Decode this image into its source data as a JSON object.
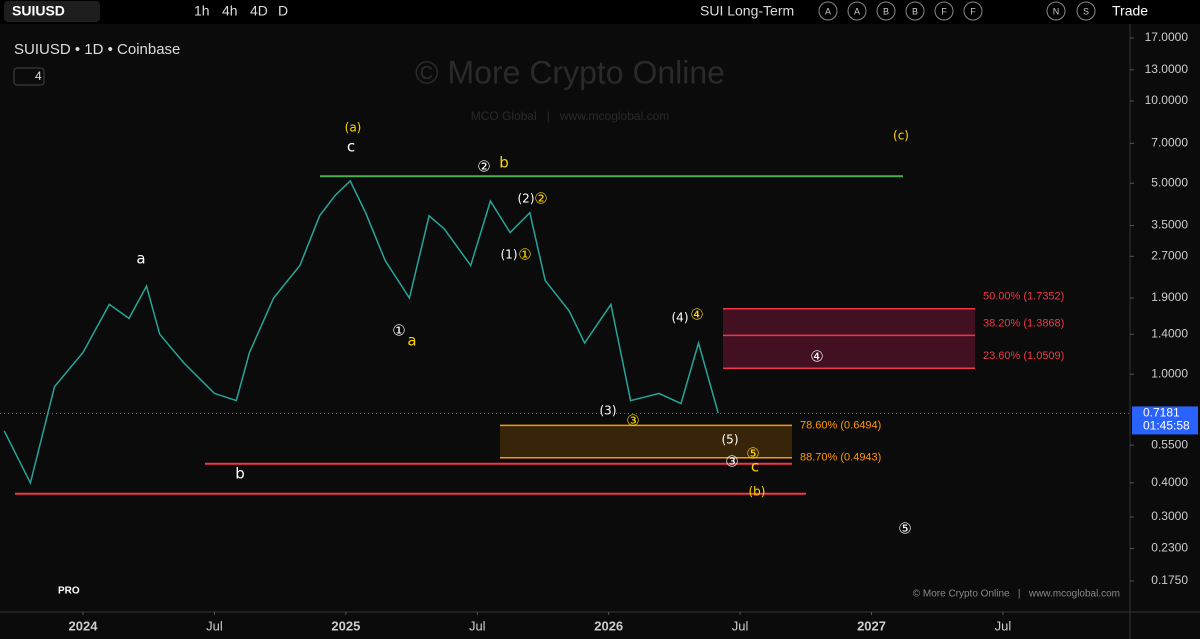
{
  "toolbar": {
    "symbol": "SUIUSD",
    "intervals": [
      "1h",
      "4h",
      "4D",
      "D"
    ],
    "layout_name": "SUI Long-Term",
    "alerts": [
      "A",
      "A",
      "B",
      "B",
      "F",
      "F"
    ],
    "extra": [
      "N",
      "S"
    ],
    "trade": "Trade"
  },
  "legend": {
    "title": "SUIUSD • 1D • Coinbase",
    "indicators": "4"
  },
  "watermark": {
    "title": "© More Crypto Online",
    "subtitle": "MCO Global   |   www.mcoglobal.com"
  },
  "footer": {
    "credit": "© More Crypto Online   |   www.mcoglobal.com",
    "logo": "PRO"
  },
  "chart_data": {
    "type": "line",
    "log_scale": true,
    "color": "#26a69a",
    "x": [
      -3.6,
      -2.4,
      -1.3,
      0,
      1.2,
      2.1,
      2.9,
      3.5,
      4.6,
      6,
      7,
      7.6,
      8.7,
      9.9,
      10.8,
      11.5,
      12.2,
      12.9,
      13.8,
      14.9,
      15.8,
      16.5,
      17.7,
      18.6,
      19.5,
      20.4,
      21.1,
      22.2,
      22.9,
      24.1,
      25,
      26.3,
      27.3,
      28.1,
      29
    ],
    "values": [
      0.62,
      0.4,
      0.9,
      1.2,
      1.8,
      1.6,
      2.1,
      1.4,
      1.1,
      0.85,
      0.8,
      1.2,
      1.9,
      2.5,
      3.8,
      4.5,
      5.1,
      3.9,
      2.6,
      1.9,
      3.8,
      3.4,
      2.5,
      4.3,
      3.3,
      3.9,
      2.2,
      1.7,
      1.3,
      1.8,
      0.8,
      0.85,
      0.78,
      1.3,
      0.72
    ],
    "xlim": [
      -3.79,
      47.8
    ],
    "ylim": [
      0.137,
      18.5
    ],
    "xticks": [
      {
        "value": 0,
        "label": "2024"
      },
      {
        "value": 6,
        "label": "Jul"
      },
      {
        "value": 12,
        "label": "2025"
      },
      {
        "value": 18,
        "label": "Jul"
      },
      {
        "value": 24,
        "label": "2026"
      },
      {
        "value": 30,
        "label": "Jul"
      },
      {
        "value": 36,
        "label": "2027"
      },
      {
        "value": 42,
        "label": "Jul"
      }
    ],
    "yticks": [
      {
        "value": 17,
        "label": "17.0000"
      },
      {
        "value": 13,
        "label": "13.0000"
      },
      {
        "value": 10,
        "label": "10.0000"
      },
      {
        "value": 7,
        "label": "7.0000"
      },
      {
        "value": 5,
        "label": "5.0000"
      },
      {
        "value": 3.5,
        "label": "3.5000"
      },
      {
        "value": 2.7,
        "label": "2.7000"
      },
      {
        "value": 1.9,
        "label": "1.9000"
      },
      {
        "value": 1.4,
        "label": "1.4000"
      },
      {
        "value": 1,
        "label": "1.0000"
      },
      {
        "value": 0.55,
        "label": "0.5500"
      },
      {
        "value": 0.4,
        "label": "0.4000"
      },
      {
        "value": 0.3,
        "label": "0.3000"
      },
      {
        "value": 0.23,
        "label": "0.2300"
      },
      {
        "value": 0.175,
        "label": "0.1750"
      }
    ],
    "current_price": 0.7181,
    "countdown": "01:45:58",
    "levels": [
      {
        "value": 5.3,
        "color": "#4caf50"
      },
      {
        "value": 0.47,
        "color": "#f23645"
      },
      {
        "value": 0.365,
        "color": "#f23645"
      }
    ],
    "fib_levels": [
      {
        "label": "50.00% (1.7352)",
        "value": 1.7352,
        "color": "#f23645"
      },
      {
        "label": "38.20% (1.3868)",
        "value": 1.3868,
        "color": "#f23645"
      },
      {
        "label": "23.60% (1.0509)",
        "value": 1.0509,
        "color": "#f23645"
      },
      {
        "label": "78.60% (0.6494)",
        "value": 0.6494,
        "color": "#ff9800"
      },
      {
        "label": "88.70% (0.4943)",
        "value": 0.4943,
        "color": "#ff9800"
      }
    ],
    "annotations": [
      {
        "text": "(a)",
        "color": "#ffd600"
      },
      {
        "text": "c",
        "color": "#ffffff"
      },
      {
        "text": "②",
        "color": "#ffffff"
      },
      {
        "text": "b",
        "color": "#ffd600"
      },
      {
        "text": "(c)",
        "color": "#ffd600"
      },
      {
        "text": "a",
        "color": "#ffffff"
      },
      {
        "text": "b",
        "color": "#ffffff"
      },
      {
        "text": "①",
        "color": "#ffffff"
      },
      {
        "text": "a",
        "color": "#ffd600"
      },
      {
        "text": "(2)",
        "color": "#ffffff"
      },
      {
        "text": "②",
        "color": "#ffd600"
      },
      {
        "text": "(1)",
        "color": "#ffffff"
      },
      {
        "text": "①",
        "color": "#ffd600"
      },
      {
        "text": "(4)",
        "color": "#ffffff"
      },
      {
        "text": "④",
        "color": "#ffd600"
      },
      {
        "text": "④",
        "color": "#ffffff"
      },
      {
        "text": "(3)",
        "color": "#ffffff"
      },
      {
        "text": "③",
        "color": "#ffd600"
      },
      {
        "text": "(5)",
        "color": "#ffffff"
      },
      {
        "text": "⑤",
        "color": "#ffd600"
      },
      {
        "text": "③",
        "color": "#ffffff"
      },
      {
        "text": "c",
        "color": "#ffd600"
      },
      {
        "text": "(b)",
        "color": "#ffd600"
      },
      {
        "text": "⑤",
        "color": "#ffffff"
      }
    ]
  }
}
